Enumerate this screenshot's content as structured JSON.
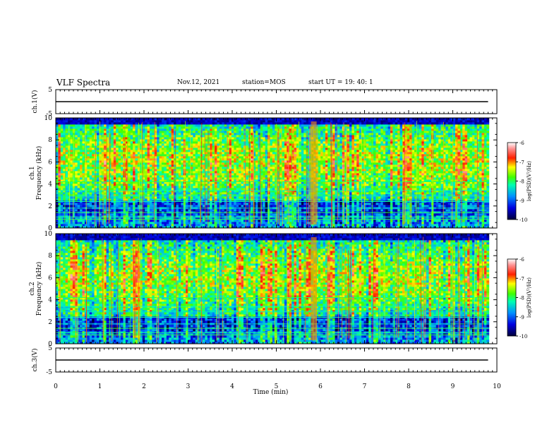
{
  "header": {
    "title": "VLF Spectra",
    "date": "Nov.12, 2021",
    "station": "station=MOS",
    "start": "start  UT  =   19: 40: 1"
  },
  "colors": {
    "spectrum": [
      "#00003a",
      "#0000c8",
      "#0070ff",
      "#00e0ff",
      "#00ff40",
      "#a0ff00",
      "#ffff00",
      "#ff8000",
      "#ff0000",
      "#ff9090",
      "#ffffff"
    ]
  },
  "chart_data": [
    {
      "type": "line",
      "title": "",
      "ylabel": "ch.1(V)",
      "ylim": [
        -5,
        5
      ],
      "yticks": [
        "5",
        "-5"
      ],
      "series": [
        {
          "values_description": "flat",
          "x": [
            0,
            9.8
          ],
          "y": [
            0,
            0
          ]
        }
      ]
    },
    {
      "type": "heatmap",
      "ylabel": "ch.1\nFrequency (kHz)",
      "ylim": [
        0,
        10
      ],
      "yticks": [
        "0",
        "2",
        "4",
        "6",
        "8",
        "10"
      ],
      "colorbar": {
        "label": "log(PSD)(V²/Hz)",
        "range": [
          -10,
          -6
        ],
        "ticks": [
          "-6",
          "-7",
          "-8",
          "-9",
          "-10"
        ]
      }
    },
    {
      "type": "heatmap",
      "ylabel": "ch.2\nFrequency (kHz)",
      "ylim": [
        0,
        10
      ],
      "yticks": [
        "0",
        "2",
        "4",
        "6",
        "8",
        "10"
      ],
      "colorbar": {
        "label": "log(PSD)(V²/Hz)",
        "range": [
          -10,
          -6
        ],
        "ticks": [
          "-6",
          "-7",
          "-8",
          "-9",
          "-10"
        ]
      }
    },
    {
      "type": "line",
      "ylabel": "ch.3(V)",
      "ylim": [
        -5,
        5
      ],
      "yticks": [
        "5",
        "-5"
      ],
      "series": [
        {
          "x": [
            0,
            9.8
          ],
          "y": [
            0,
            0
          ]
        }
      ]
    }
  ],
  "xaxis": {
    "label": "Time  (min)",
    "range": [
      0,
      10
    ],
    "ticks": [
      "0",
      "1",
      "2",
      "3",
      "4",
      "5",
      "6",
      "7",
      "8",
      "9",
      "10"
    ]
  }
}
